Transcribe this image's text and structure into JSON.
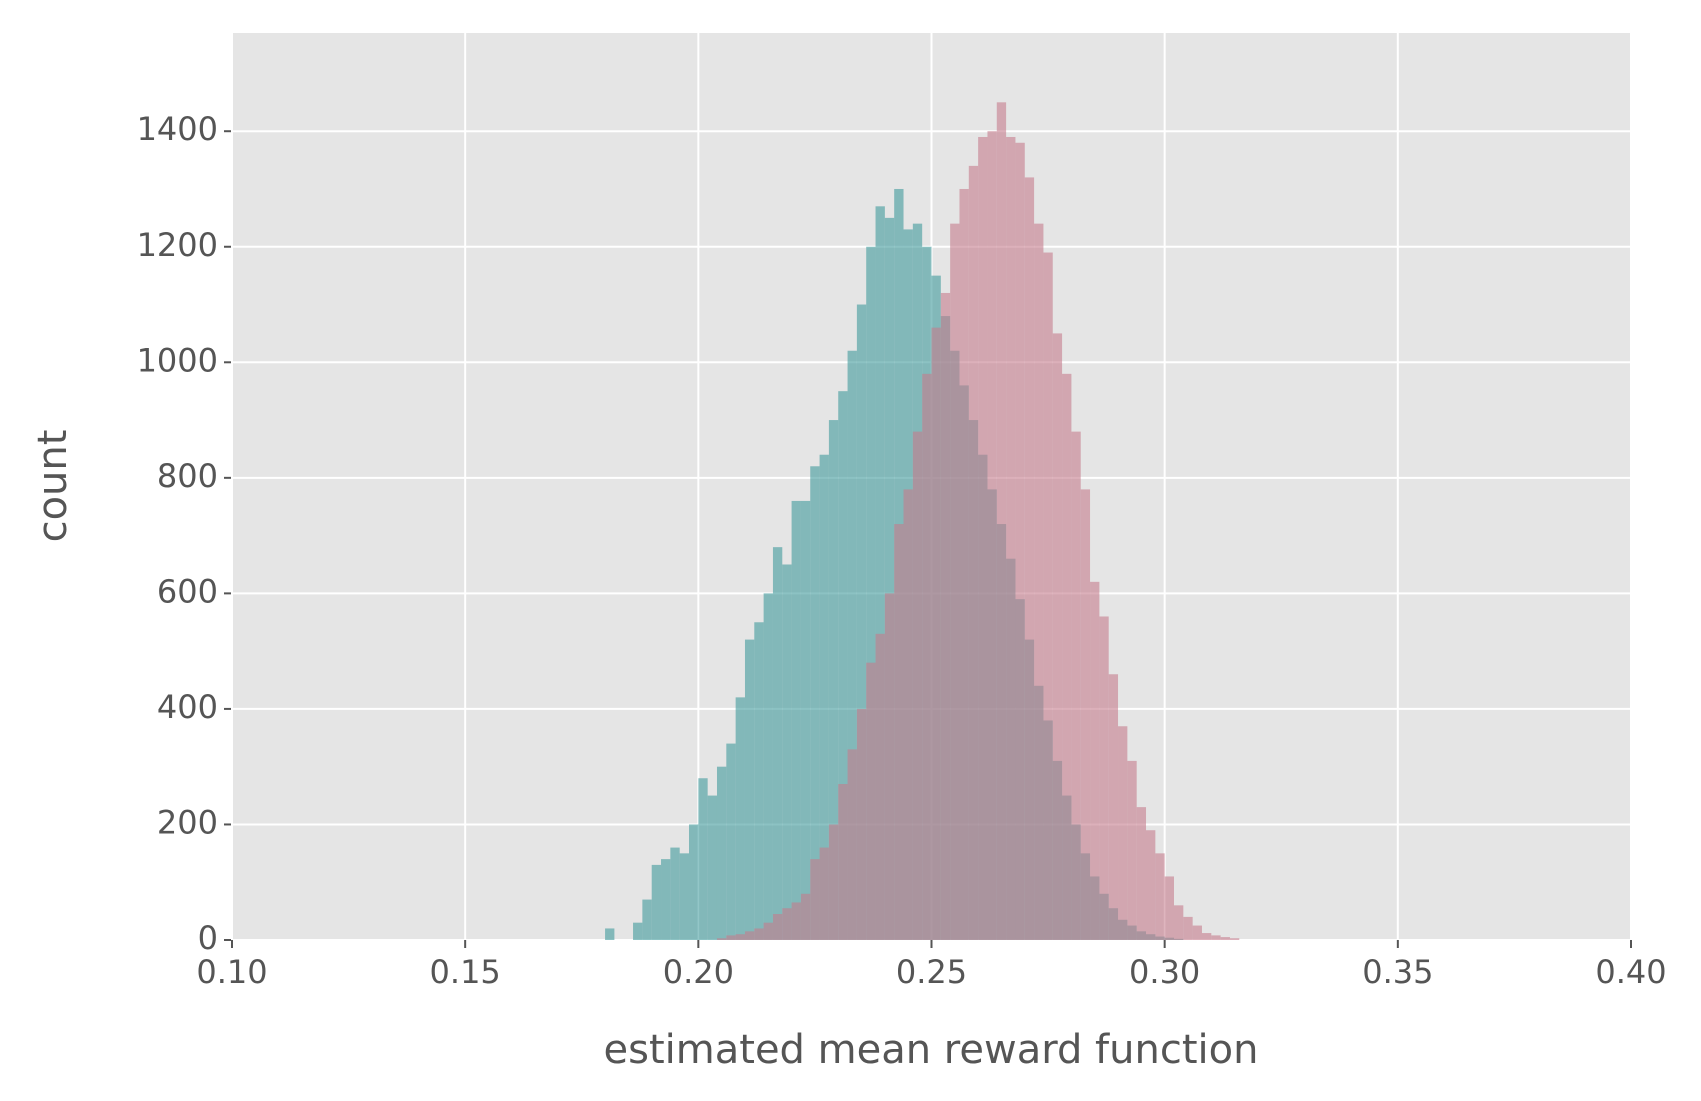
{
  "chart_data": {
    "type": "histogram",
    "xlabel": "estimated mean reward function",
    "ylabel": "count",
    "bins": [
      0.18,
      0.182,
      0.184,
      0.186,
      0.188,
      0.19,
      0.192,
      0.194,
      0.196,
      0.198,
      0.2,
      0.202,
      0.204,
      0.206,
      0.208,
      0.21,
      0.212,
      0.214,
      0.216,
      0.218,
      0.22,
      0.222,
      0.224,
      0.226,
      0.228,
      0.23,
      0.232,
      0.234,
      0.236,
      0.238,
      0.24,
      0.242,
      0.244,
      0.246,
      0.248,
      0.25,
      0.252,
      0.254,
      0.256,
      0.258,
      0.26,
      0.262,
      0.264,
      0.266,
      0.268,
      0.27,
      0.272,
      0.274,
      0.276,
      0.278,
      0.28,
      0.282,
      0.284,
      0.286,
      0.288,
      0.29,
      0.292,
      0.294,
      0.296,
      0.298,
      0.3,
      0.302,
      0.304,
      0.306,
      0.308,
      0.31,
      0.312,
      0.314,
      0.316
    ],
    "series": [
      {
        "color": "#3f9a9b",
        "values": [
          20,
          0,
          0,
          30,
          70,
          130,
          140,
          160,
          150,
          200,
          280,
          250,
          300,
          340,
          420,
          520,
          550,
          600,
          680,
          650,
          760,
          760,
          820,
          840,
          900,
          950,
          1020,
          1100,
          1200,
          1270,
          1250,
          1300,
          1230,
          1240,
          1200,
          1150,
          1080,
          1020,
          960,
          900,
          840,
          780,
          720,
          660,
          590,
          520,
          440,
          380,
          310,
          250,
          200,
          150,
          110,
          80,
          55,
          35,
          25,
          15,
          10,
          6,
          4,
          2,
          0,
          0,
          0,
          0,
          0,
          0
        ]
      },
      {
        "color": "#c47b8c",
        "values": [
          0,
          0,
          0,
          0,
          0,
          0,
          0,
          0,
          0,
          0,
          0,
          0,
          3,
          8,
          10,
          15,
          20,
          30,
          45,
          55,
          65,
          80,
          140,
          160,
          200,
          270,
          330,
          400,
          480,
          530,
          600,
          720,
          780,
          880,
          980,
          1060,
          1120,
          1240,
          1300,
          1340,
          1390,
          1400,
          1450,
          1390,
          1380,
          1320,
          1240,
          1190,
          1050,
          980,
          880,
          780,
          620,
          560,
          460,
          370,
          310,
          230,
          190,
          150,
          110,
          60,
          40,
          25,
          12,
          8,
          5,
          3
        ]
      }
    ],
    "xlim": [
      0.1,
      0.4
    ],
    "xticks": [
      {
        "value": 0.1,
        "label": "0.10"
      },
      {
        "value": 0.15,
        "label": "0.15"
      },
      {
        "value": 0.2,
        "label": "0.20"
      },
      {
        "value": 0.25,
        "label": "0.25"
      },
      {
        "value": 0.3,
        "label": "0.30"
      },
      {
        "value": 0.35,
        "label": "0.35"
      },
      {
        "value": 0.4,
        "label": "0.40"
      }
    ],
    "ylim": [
      0,
      1570
    ],
    "yticks": [
      0,
      200,
      400,
      600,
      800,
      1000,
      1200,
      1400
    ],
    "grid": true
  }
}
